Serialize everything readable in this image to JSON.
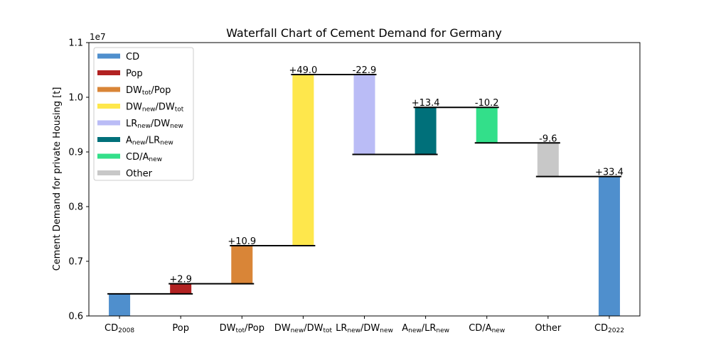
{
  "chart_data": {
    "type": "bar",
    "title": "Waterfall Chart of Cement Demand for Germany",
    "ylabel": "Cement Demand for private Housing [t]",
    "xlabel": "",
    "y_offset_label": "1e7",
    "ylim": [
      0.6,
      1.1
    ],
    "yticks": [
      "0.6",
      "0.7",
      "0.8",
      "0.9",
      "1.0",
      "1.1"
    ],
    "legend_position": "upper-left",
    "legend": [
      {
        "base": "CD",
        "sub": "",
        "tail": "",
        "sub2": "",
        "color": "#4f8fcd"
      },
      {
        "base": "Pop",
        "sub": "",
        "tail": "",
        "sub2": "",
        "color": "#b22222"
      },
      {
        "base": "DW",
        "sub": "tot",
        "tail": "/Pop",
        "sub2": "",
        "color": "#d98537"
      },
      {
        "base": "DW",
        "sub": "new",
        "tail": "/DW",
        "sub2": "tot",
        "color": "#fee74c"
      },
      {
        "base": "LR",
        "sub": "new",
        "tail": "/DW",
        "sub2": "new",
        "color": "#babcf6"
      },
      {
        "base": "A",
        "sub": "new",
        "tail": "/LR",
        "sub2": "new",
        "color": "#00707a"
      },
      {
        "base": "CD/A",
        "sub": "new",
        "tail": "",
        "sub2": "",
        "color": "#33df8a"
      },
      {
        "base": "Other",
        "sub": "",
        "tail": "",
        "sub2": "",
        "color": "#c8c8c8"
      }
    ],
    "categories": [
      {
        "base": "CD",
        "sub": "2008",
        "tail": "",
        "sub2": ""
      },
      {
        "base": "Pop",
        "sub": "",
        "tail": "",
        "sub2": ""
      },
      {
        "base": "DW",
        "sub": "tot",
        "tail": "/Pop",
        "sub2": ""
      },
      {
        "base": "DW",
        "sub": "new",
        "tail": "/DW",
        "sub2": "tot"
      },
      {
        "base": "LR",
        "sub": "new",
        "tail": "/DW",
        "sub2": "new"
      },
      {
        "base": "A",
        "sub": "new",
        "tail": "/LR",
        "sub2": "new"
      },
      {
        "base": "CD/A",
        "sub": "new",
        "tail": "",
        "sub2": ""
      },
      {
        "base": "Other",
        "sub": "",
        "tail": "",
        "sub2": ""
      },
      {
        "base": "CD",
        "sub": "2022",
        "tail": "",
        "sub2": ""
      }
    ],
    "bars": [
      {
        "bottom": 0.6,
        "top": 0.6405,
        "color": "#4f8fcd",
        "label": ""
      },
      {
        "bottom": 0.6405,
        "top": 0.659,
        "color": "#b22222",
        "label": "+2.9"
      },
      {
        "bottom": 0.659,
        "top": 0.7285,
        "color": "#d98537",
        "label": "+10.9"
      },
      {
        "bottom": 0.7285,
        "top": 1.0415,
        "color": "#fee74c",
        "label": "+49.0"
      },
      {
        "bottom": 0.8955,
        "top": 1.0415,
        "color": "#babcf6",
        "label": "-22.9"
      },
      {
        "bottom": 0.8955,
        "top": 0.9815,
        "color": "#00707a",
        "label": "+13.4"
      },
      {
        "bottom": 0.9165,
        "top": 0.9815,
        "color": "#33df8a",
        "label": "-10.2"
      },
      {
        "bottom": 0.855,
        "top": 0.9165,
        "color": "#c8c8c8",
        "label": "-9.6"
      },
      {
        "bottom": 0.6,
        "top": 0.855,
        "color": "#4f8fcd",
        "label": "+33.4"
      }
    ],
    "connectors": [
      0.6405,
      0.659,
      0.7285,
      1.0415,
      0.8955,
      0.9815,
      0.9165,
      0.855
    ]
  }
}
